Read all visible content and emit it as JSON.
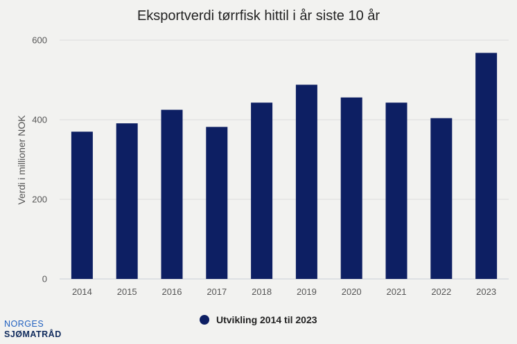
{
  "chart_data": {
    "type": "bar",
    "title": "Eksportverdi tørrfisk hittil i år siste 10 år",
    "xlabel": "",
    "ylabel": "Verdi i millioner NOK",
    "categories": [
      "2014",
      "2015",
      "2016",
      "2017",
      "2018",
      "2019",
      "2020",
      "2021",
      "2022",
      "2023"
    ],
    "series": [
      {
        "name": "Utvikling 2014 til 2023",
        "values": [
          370,
          391,
          425,
          382,
          443,
          488,
          456,
          443,
          404,
          568
        ],
        "color": "#0d1f63"
      }
    ],
    "ylim": [
      0,
      600
    ],
    "yticks": [
      0,
      200,
      400,
      600
    ],
    "grid": true,
    "legend_position": "bottom"
  },
  "logo": {
    "line1": "NORGES",
    "line2": "SJØMATRÅD"
  }
}
